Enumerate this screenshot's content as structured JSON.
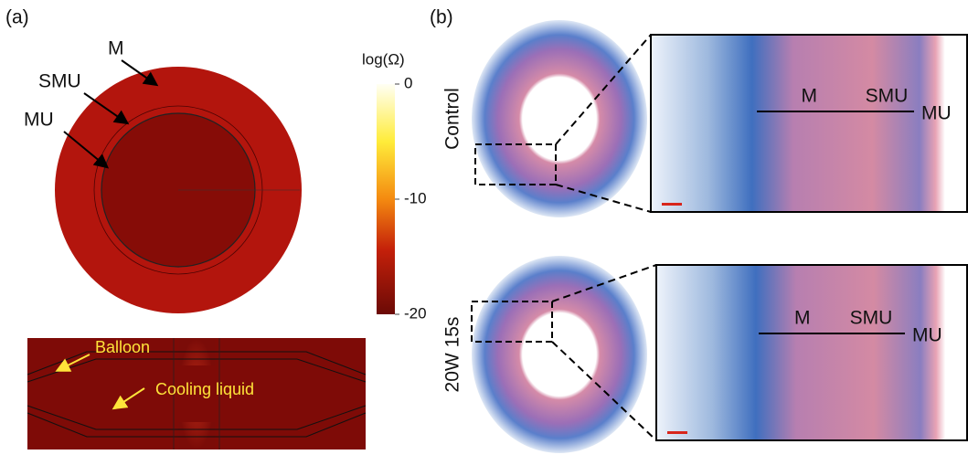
{
  "panel_a": {
    "label": "(a)",
    "annotations": [
      "M",
      "SMU",
      "MU"
    ],
    "colorbar": {
      "title": "log(Ω)",
      "lim": [
        -20,
        0
      ],
      "ticks": [
        0,
        -10,
        -20
      ]
    },
    "bottom_annotations": [
      "Balloon",
      "Cooling liquid"
    ]
  },
  "panel_b": {
    "label": "(b)",
    "rows": [
      {
        "label": "Control",
        "annotations": [
          "M",
          "SMU",
          "MU"
        ]
      },
      {
        "label": "20W 15s",
        "annotations": [
          "M",
          "SMU",
          "MU"
        ]
      }
    ]
  }
}
